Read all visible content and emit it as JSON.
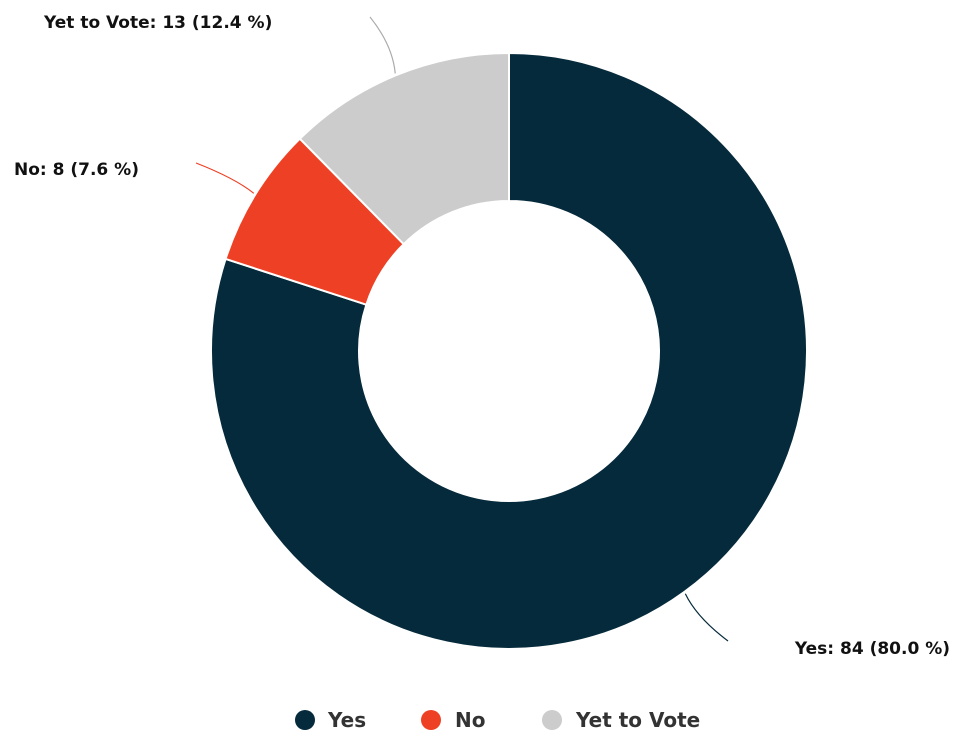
{
  "chart_data": {
    "type": "pie",
    "variant": "donut",
    "title": "",
    "series": [
      {
        "name": "Yes",
        "value": 84,
        "percent": "80.0",
        "color": "#052a3b",
        "label": "Yes: 84 (80.0 %)"
      },
      {
        "name": "No",
        "value": 8,
        "percent": "7.6",
        "color": "#ee4024",
        "label": "No: 8 (7.6 %)"
      },
      {
        "name": "Yet to Vote",
        "value": 13,
        "percent": "12.4",
        "color": "#cccccc",
        "label": "Yet to Vote: 13 (12.4 %)"
      }
    ],
    "legend_position": "bottom",
    "start": "top",
    "direction": "clockwise"
  }
}
